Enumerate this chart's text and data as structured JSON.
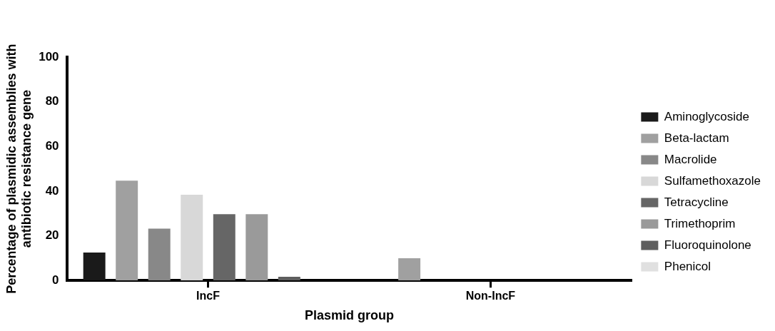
{
  "chart_data": {
    "type": "bar",
    "xlabel": "Plasmid group",
    "ylabel": "Percentage of plasmidic assemblies with antibiotic resistance gene",
    "categories": [
      "IncF",
      "Non-IncF"
    ],
    "series": [
      {
        "name": "Aminoglycoside",
        "color": "#1a1a1a",
        "values": [
          12.5,
          0
        ]
      },
      {
        "name": "Beta-lactam",
        "color": "#a0a0a0",
        "values": [
          44.7,
          10
        ]
      },
      {
        "name": "Macrolide",
        "color": "#888888",
        "values": [
          23.2,
          0
        ]
      },
      {
        "name": "Sulfamethoxazole",
        "color": "#d8d8d8",
        "values": [
          38.4,
          0
        ]
      },
      {
        "name": "Tetracycline",
        "color": "#666666",
        "values": [
          29.7,
          0
        ]
      },
      {
        "name": "Trimethoprim",
        "color": "#9a9a9a",
        "values": [
          29.7,
          0
        ]
      },
      {
        "name": "Fluoroquinolone",
        "color": "#5e5e5e",
        "values": [
          1.7,
          0
        ]
      },
      {
        "name": "Phenicol",
        "color": "#e0e0e0",
        "values": [
          0,
          0
        ]
      }
    ],
    "ylim": [
      0,
      100
    ],
    "yticks": [
      0,
      20,
      40,
      60,
      80,
      100
    ],
    "legend": "right"
  }
}
